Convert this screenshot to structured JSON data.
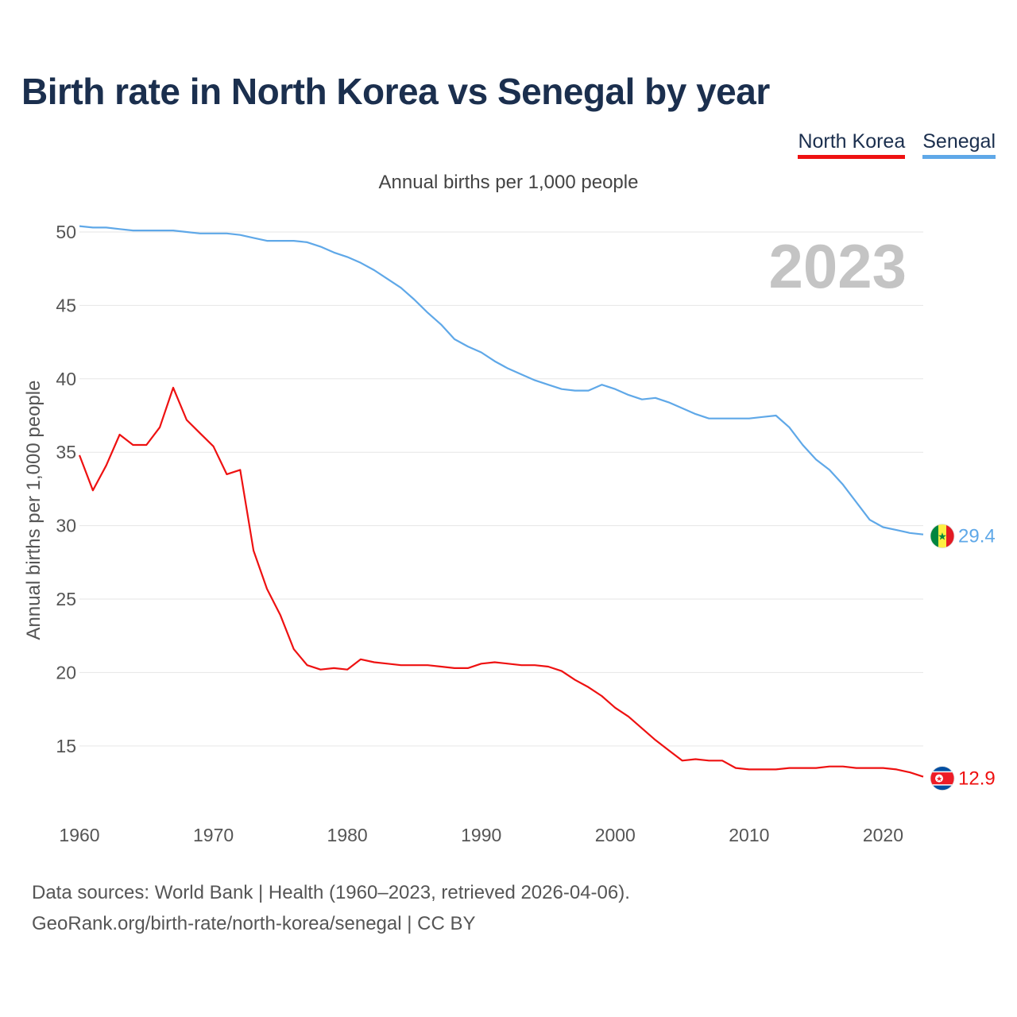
{
  "title": "Birth rate in North Korea vs Senegal by year",
  "subtitle": "Annual births per 1,000 people",
  "legend": [
    {
      "label": "North Korea",
      "color": "#ee1111"
    },
    {
      "label": "Senegal",
      "color": "#5fa8e8"
    }
  ],
  "footer": {
    "line1": "Data sources: World Bank | Health (1960–2023, retrieved 2026-04-06).",
    "line2": "GeoRank.org/birth-rate/north-korea/senegal | CC BY"
  },
  "chart_data": {
    "type": "line",
    "title": "Birth rate in North Korea vs Senegal by year",
    "xlabel": "",
    "ylabel": "Annual births per 1,000 people",
    "year_label": "2023",
    "xlim": [
      1960,
      2023
    ],
    "ylim": [
      10.5,
      52
    ],
    "yticks": [
      15,
      20,
      25,
      30,
      35,
      40,
      45,
      50
    ],
    "xticks": [
      1960,
      1970,
      1980,
      1990,
      2000,
      2010,
      2020
    ],
    "grid": true,
    "x": [
      1960,
      1961,
      1962,
      1963,
      1964,
      1965,
      1966,
      1967,
      1968,
      1969,
      1970,
      1971,
      1972,
      1973,
      1974,
      1975,
      1976,
      1977,
      1978,
      1979,
      1980,
      1981,
      1982,
      1983,
      1984,
      1985,
      1986,
      1987,
      1988,
      1989,
      1990,
      1991,
      1992,
      1993,
      1994,
      1995,
      1996,
      1997,
      1998,
      1999,
      2000,
      2001,
      2002,
      2003,
      2004,
      2005,
      2006,
      2007,
      2008,
      2009,
      2010,
      2011,
      2012,
      2013,
      2014,
      2015,
      2016,
      2017,
      2018,
      2019,
      2020,
      2021,
      2022,
      2023
    ],
    "series": [
      {
        "name": "North Korea",
        "color": "#ee1111",
        "end_label": "12.9",
        "values": [
          34.8,
          32.4,
          34.1,
          36.2,
          35.5,
          35.5,
          36.7,
          39.4,
          37.2,
          36.3,
          35.4,
          33.5,
          33.8,
          28.3,
          25.7,
          23.9,
          21.6,
          20.5,
          20.2,
          20.3,
          20.2,
          20.9,
          20.7,
          20.6,
          20.5,
          20.5,
          20.5,
          20.4,
          20.3,
          20.3,
          20.6,
          20.7,
          20.6,
          20.5,
          20.5,
          20.4,
          20.1,
          19.5,
          19.0,
          18.4,
          17.6,
          17.0,
          16.2,
          15.4,
          14.7,
          14.0,
          14.1,
          14.0,
          14.0,
          13.5,
          13.4,
          13.4,
          13.4,
          13.5,
          13.5,
          13.5,
          13.6,
          13.6,
          13.5,
          13.5,
          13.5,
          13.4,
          13.2,
          12.9
        ]
      },
      {
        "name": "Senegal",
        "color": "#5fa8e8",
        "end_label": "29.4",
        "values": [
          50.4,
          50.3,
          50.3,
          50.2,
          50.1,
          50.1,
          50.1,
          50.1,
          50.0,
          49.9,
          49.9,
          49.9,
          49.8,
          49.6,
          49.4,
          49.4,
          49.4,
          49.3,
          49.0,
          48.6,
          48.3,
          47.9,
          47.4,
          46.8,
          46.2,
          45.4,
          44.5,
          43.7,
          42.7,
          42.2,
          41.8,
          41.2,
          40.7,
          40.3,
          39.9,
          39.6,
          39.3,
          39.2,
          39.2,
          39.6,
          39.3,
          38.9,
          38.6,
          38.7,
          38.4,
          38.0,
          37.6,
          37.3,
          37.3,
          37.3,
          37.3,
          37.4,
          37.5,
          36.7,
          35.5,
          34.5,
          33.8,
          32.8,
          31.6,
          30.4,
          29.9,
          29.7,
          29.5,
          29.4
        ]
      }
    ]
  }
}
